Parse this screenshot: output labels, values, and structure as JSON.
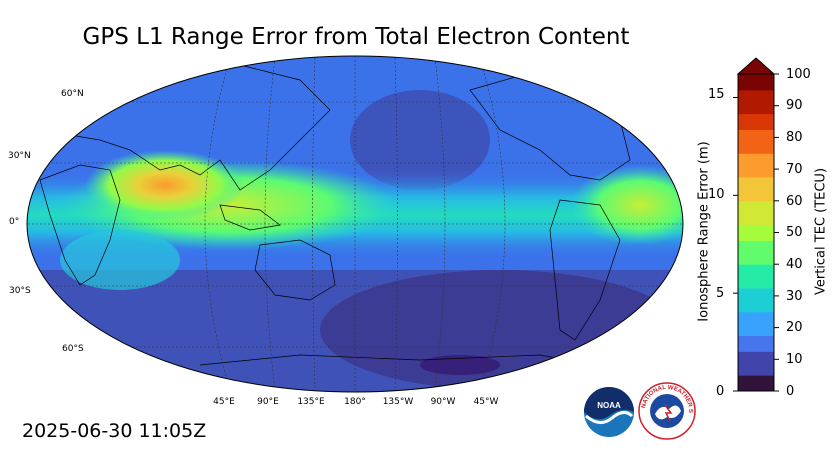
{
  "title": "GPS L1 Range Error from Total Electron Content",
  "timestamp": "2025-06-30 11:05Z",
  "lat_labels": [
    "60°N",
    "30°N",
    "0°",
    "30°S",
    "60°S"
  ],
  "lon_labels": [
    "45°E",
    "90°E",
    "135°E",
    "180°",
    "135°W",
    "90°W",
    "45°W"
  ],
  "colorbar": {
    "left_label": "Ionosphere Range Error (m)",
    "right_label": "Vertical TEC (TECU)",
    "left_ticks": [
      "0",
      "5",
      "10",
      "15"
    ],
    "right_ticks": [
      "0",
      "10",
      "20",
      "30",
      "40",
      "50",
      "60",
      "70",
      "80",
      "90",
      "100"
    ],
    "range_tecu": [
      0,
      100
    ],
    "range_m": [
      0,
      16.2
    ],
    "extend": "max",
    "colors": [
      "#30123b",
      "#4145ab",
      "#4675ed",
      "#39a2fc",
      "#1bcfd4",
      "#24eca6",
      "#61fc6c",
      "#a4fc3b",
      "#d1e834",
      "#f3c63a",
      "#fe9b2d",
      "#f36315",
      "#d93806",
      "#b11901",
      "#7a0403"
    ]
  },
  "logos": [
    "NOAA",
    "NATIONAL WEATHER SERVICE"
  ],
  "colors": {
    "ocean_low": "#3f4fb3",
    "ocean_mid": "#3b7cf0",
    "equatorial_band": "#2ce6b0",
    "peak": "#f6a03a"
  }
}
